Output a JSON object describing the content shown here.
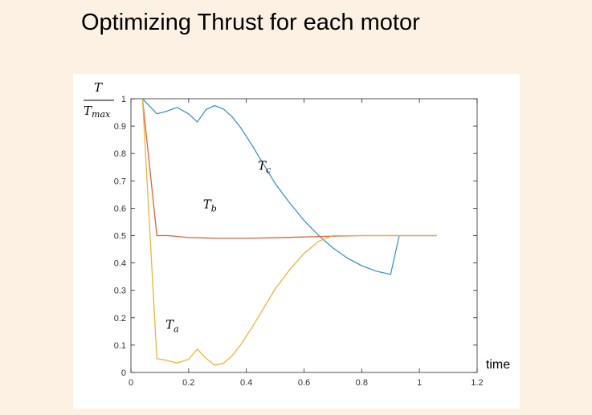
{
  "title": "Optimizing Thrust for each motor",
  "chart_data": {
    "type": "line",
    "xlabel": "time",
    "ylabel": {
      "numerator": "T",
      "denominator_base": "T",
      "denominator_sub": "max"
    },
    "xlim": [
      0,
      1.2
    ],
    "ylim": [
      0,
      1
    ],
    "x_ticks": [
      0,
      0.2,
      0.4,
      0.6,
      0.8,
      1,
      1.2
    ],
    "x_tick_labels": [
      "0",
      "0.2",
      "0.4",
      "0.6",
      "0.8",
      "1",
      "1.2"
    ],
    "y_ticks": [
      0,
      0.1,
      0.2,
      0.3,
      0.4,
      0.5,
      0.6,
      0.7,
      0.8,
      0.9,
      1
    ],
    "y_tick_labels": [
      "0",
      "0.1",
      "0.2",
      "0.3",
      "0.4",
      "0.5",
      "0.6",
      "0.7",
      "0.8",
      "0.9",
      "1"
    ],
    "series": [
      {
        "name": "T_c",
        "label_base": "T",
        "label_sub": "c",
        "color": "#3d97c4",
        "label_at": [
          0.44,
          0.74
        ],
        "points": [
          [
            0.04,
            1.0
          ],
          [
            0.09,
            0.945
          ],
          [
            0.12,
            0.953
          ],
          [
            0.16,
            0.968
          ],
          [
            0.2,
            0.945
          ],
          [
            0.23,
            0.915
          ],
          [
            0.26,
            0.96
          ],
          [
            0.29,
            0.975
          ],
          [
            0.32,
            0.963
          ],
          [
            0.35,
            0.935
          ],
          [
            0.38,
            0.895
          ],
          [
            0.42,
            0.83
          ],
          [
            0.46,
            0.76
          ],
          [
            0.5,
            0.69
          ],
          [
            0.55,
            0.62
          ],
          [
            0.6,
            0.555
          ],
          [
            0.65,
            0.501
          ],
          [
            0.7,
            0.455
          ],
          [
            0.75,
            0.418
          ],
          [
            0.8,
            0.39
          ],
          [
            0.85,
            0.37
          ],
          [
            0.9,
            0.358
          ],
          [
            0.93,
            0.5
          ],
          [
            0.96,
            0.5
          ],
          [
            1.06,
            0.5
          ]
        ]
      },
      {
        "name": "T_b",
        "label_base": "T",
        "label_sub": "b",
        "color": "#d9633a",
        "label_at": [
          0.25,
          0.6
        ],
        "points": [
          [
            0.04,
            1.0
          ],
          [
            0.09,
            0.5
          ],
          [
            0.13,
            0.5
          ],
          [
            0.2,
            0.493
          ],
          [
            0.3,
            0.49
          ],
          [
            0.4,
            0.49
          ],
          [
            0.5,
            0.492
          ],
          [
            0.6,
            0.495
          ],
          [
            0.7,
            0.498
          ],
          [
            0.8,
            0.5
          ],
          [
            0.9,
            0.5
          ],
          [
            1.06,
            0.5
          ]
        ]
      },
      {
        "name": "T_a",
        "label_base": "T",
        "label_sub": "a",
        "color": "#ecb43d",
        "label_at": [
          0.12,
          0.16
        ],
        "points": [
          [
            0.04,
            1.0
          ],
          [
            0.09,
            0.05
          ],
          [
            0.12,
            0.045
          ],
          [
            0.16,
            0.035
          ],
          [
            0.2,
            0.048
          ],
          [
            0.23,
            0.085
          ],
          [
            0.26,
            0.052
          ],
          [
            0.29,
            0.027
          ],
          [
            0.32,
            0.033
          ],
          [
            0.35,
            0.06
          ],
          [
            0.38,
            0.1
          ],
          [
            0.42,
            0.165
          ],
          [
            0.46,
            0.235
          ],
          [
            0.5,
            0.305
          ],
          [
            0.55,
            0.375
          ],
          [
            0.6,
            0.435
          ],
          [
            0.65,
            0.479
          ],
          [
            0.7,
            0.5
          ],
          [
            1.06,
            0.5
          ]
        ]
      }
    ]
  }
}
